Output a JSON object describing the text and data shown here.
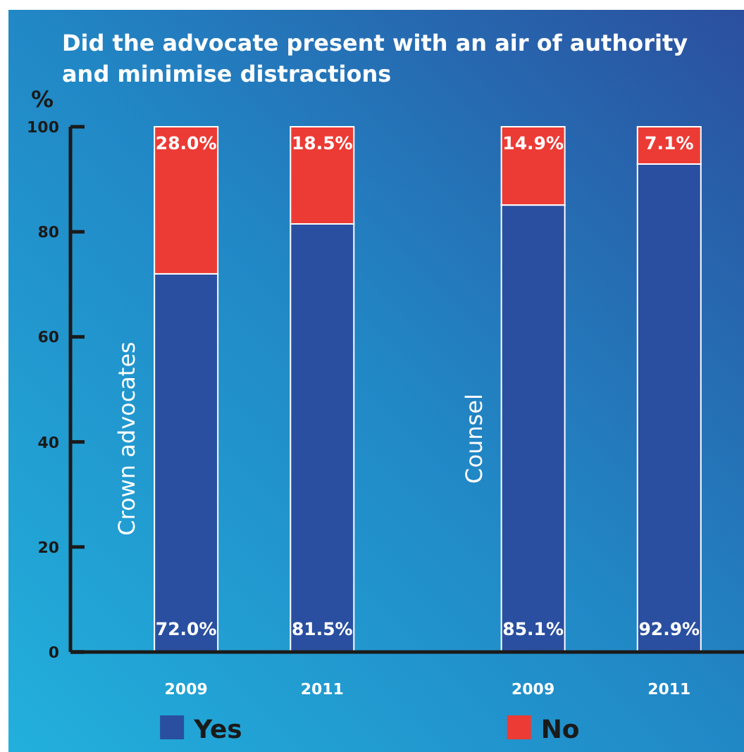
{
  "chart_data": {
    "type": "bar",
    "title": "Did the advocate present with an air of authority and minimise distractions",
    "ylabel": "%",
    "categories": [
      "2009",
      "2011",
      "2009",
      "2011"
    ],
    "stacked": true,
    "series": [
      {
        "name": "Yes",
        "color": "#2a4fa0",
        "values": [
          72.0,
          81.5,
          85.1,
          92.9
        ],
        "value_labels": [
          "72.0%",
          "81.5%",
          "85.1%",
          "92.9%"
        ]
      },
      {
        "name": "No",
        "color": "#ec3b35",
        "values": [
          28.0,
          18.5,
          14.9,
          7.1
        ],
        "value_labels": [
          "28.0%",
          "18.5%",
          "14.9%",
          "7.1%"
        ]
      }
    ],
    "ylim": [
      0,
      100
    ],
    "yticks": [
      0,
      20,
      40,
      60,
      80,
      100
    ],
    "grid": false,
    "legend": "bottom",
    "annotations": [
      "Crown advocates",
      "Counsel"
    ]
  }
}
